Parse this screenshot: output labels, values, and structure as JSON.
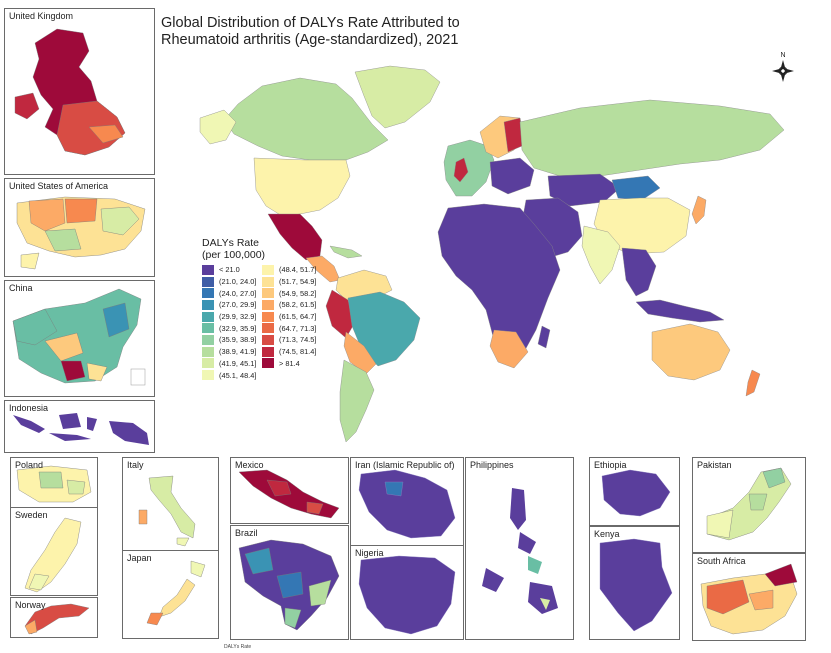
{
  "title": {
    "line1": "Global Distribution of DALYs Rate Attributed to",
    "line2": "Rheumatoid arthritis (Age-standardized), 2021"
  },
  "legend": {
    "title_line1": "DALYs Rate",
    "title_line2": "(per 100,000)",
    "bins": [
      {
        "label": "< 21.0",
        "color": "#5a3e9c"
      },
      {
        "label": "(21.0, 24.0]",
        "color": "#3f5da6"
      },
      {
        "label": "(24.0, 27.0]",
        "color": "#3477b4"
      },
      {
        "label": "(27.0, 29.9]",
        "color": "#3a93b4"
      },
      {
        "label": "(29.9, 32.9]",
        "color": "#4aa8ac"
      },
      {
        "label": "(32.9, 35.9]",
        "color": "#69bea4"
      },
      {
        "label": "(35.9, 38.9]",
        "color": "#92d0a2"
      },
      {
        "label": "(38.9, 41.9]",
        "color": "#b6de9e"
      },
      {
        "label": "(41.9, 45.1]",
        "color": "#d7eca5"
      },
      {
        "label": "(45.1, 48.4]",
        "color": "#f0f7b4"
      },
      {
        "label": "(48.4, 51.7]",
        "color": "#fdf3ab"
      },
      {
        "label": "(51.7, 54.9]",
        "color": "#fde295"
      },
      {
        "label": "(54.9, 58.2]",
        "color": "#fdc97d"
      },
      {
        "label": "(58.2, 61.5]",
        "color": "#fcaa66"
      },
      {
        "label": "(61.5, 64.7]",
        "color": "#f7894f"
      },
      {
        "label": "(64.7, 71.3]",
        "color": "#ea6a45"
      },
      {
        "label": "(71.3, 74.5]",
        "color": "#d84c44"
      },
      {
        "label": "(74.5, 81.4]",
        "color": "#c0283f"
      },
      {
        "label": "> 81.4",
        "color": "#9e0a3a"
      }
    ]
  },
  "compass": {
    "label": "N"
  },
  "insets": [
    {
      "id": "united-kingdom",
      "label": "United Kingdom"
    },
    {
      "id": "usa",
      "label": "United States of America"
    },
    {
      "id": "china",
      "label": "China"
    },
    {
      "id": "indonesia",
      "label": "Indonesia"
    },
    {
      "id": "poland",
      "label": "Poland"
    },
    {
      "id": "sweden",
      "label": "Sweden"
    },
    {
      "id": "norway",
      "label": "Norway"
    },
    {
      "id": "italy",
      "label": "Italy"
    },
    {
      "id": "japan",
      "label": "Japan"
    },
    {
      "id": "mexico",
      "label": "Mexico"
    },
    {
      "id": "brazil",
      "label": "Brazil"
    },
    {
      "id": "iran",
      "label": "Iran (Islamic Republic of)"
    },
    {
      "id": "nigeria",
      "label": "Nigeria"
    },
    {
      "id": "philippines",
      "label": "Philippines"
    },
    {
      "id": "ethiopia",
      "label": "Ethiopia"
    },
    {
      "id": "kenya",
      "label": "Kenya"
    },
    {
      "id": "pakistan",
      "label": "Pakistan"
    },
    {
      "id": "south-africa",
      "label": "South Africa"
    }
  ],
  "footnote": "DALYs Rate"
}
